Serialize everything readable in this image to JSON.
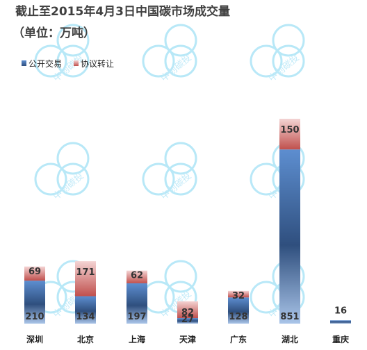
{
  "chart_data": {
    "type": "bar",
    "stacked": true,
    "title": "截止至2015年4月3日中国碳市场成交量",
    "subtitle": "（单位：万吨）",
    "categories": [
      "深圳",
      "北京",
      "上海",
      "天津",
      "广东",
      "湖北",
      "重庆"
    ],
    "series": [
      {
        "name": "公开交易",
        "values": [
          210,
          134,
          197,
          27,
          128,
          851,
          16
        ],
        "color": "#4f81bd"
      },
      {
        "name": "协议转让",
        "values": [
          69,
          171,
          62,
          82,
          32,
          150,
          0
        ],
        "color": "#c0504d"
      }
    ],
    "legend": "top-left",
    "grid": false,
    "watermark": "中创碳投"
  }
}
